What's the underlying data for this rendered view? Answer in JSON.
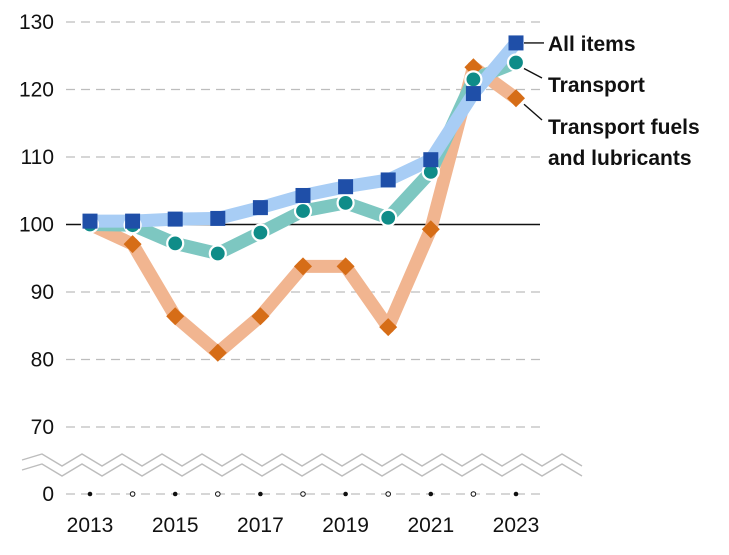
{
  "chart_data": {
    "type": "line",
    "title": "",
    "xlabel": "",
    "ylabel": "",
    "x": [
      2013,
      2014,
      2015,
      2016,
      2017,
      2018,
      2019,
      2020,
      2021,
      2022,
      2023
    ],
    "x_tick_labels": [
      "2013",
      "2015",
      "2017",
      "2019",
      "2021",
      "2023"
    ],
    "y_tick_labels": [
      "130",
      "120",
      "110",
      "100",
      "90",
      "80",
      "70",
      "0"
    ],
    "ylim": [
      70,
      130
    ],
    "axis_break": "between 0 and 70",
    "grid": true,
    "reference_line": 100,
    "series": [
      {
        "name": "All items",
        "values": [
          100.5,
          100.5,
          100.8,
          100.9,
          102.5,
          104.3,
          105.6,
          106.6,
          109.6,
          119.4,
          126.9
        ],
        "line_color": "#a8cdf5",
        "marker_color": "#1f4fa8",
        "marker": "square"
      },
      {
        "name": "Transport",
        "values": [
          100.0,
          99.9,
          97.2,
          95.7,
          98.8,
          102.0,
          103.2,
          101.0,
          107.8,
          121.5,
          124.0
        ],
        "line_color": "#7dc7c1",
        "marker_color": "#0f8c88",
        "marker": "circle"
      },
      {
        "name": "Transport fuels and lubricants",
        "legend_lines": [
          "Transport fuels",
          "and lubricants"
        ],
        "values": [
          100.0,
          97.1,
          86.4,
          81.0,
          86.4,
          93.8,
          93.8,
          84.8,
          99.3,
          123.3,
          118.7
        ],
        "line_color": "#f1b590",
        "marker_color": "#d66d17",
        "marker": "diamond"
      }
    ],
    "legend": "right, beside series end points"
  }
}
